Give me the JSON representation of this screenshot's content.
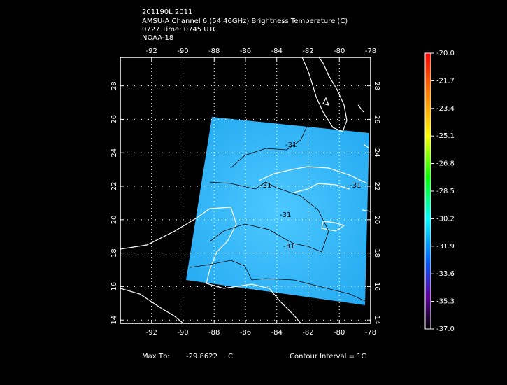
{
  "header": {
    "lines": [
      "201190L 2011",
      "AMSU-A Channel 6 (54.46GHz) Brightness Temperature (C)",
      "0727 Time: 0745 UTC",
      "NOAA-18"
    ]
  },
  "map": {
    "xlim": [
      -94,
      -78
    ],
    "ylim": [
      13.8,
      29.7
    ],
    "lon_ticks": [
      -92,
      -90,
      -88,
      -86,
      -84,
      -82,
      -80,
      -78
    ],
    "lat_ticks": [
      28,
      26,
      24,
      22,
      20,
      18,
      16,
      14
    ],
    "contour_labels": [
      "-31",
      "-31",
      "-31",
      "-31",
      "-31"
    ]
  },
  "colorbar": {
    "labels": [
      "-20.0",
      "-21.7",
      "-23.4",
      "-25.1",
      "-26.8",
      "-28.5",
      "-30.2",
      "-31.9",
      "-33.6",
      "-35.3",
      "-37.0"
    ]
  },
  "footer": {
    "max_label": "Max Tb:",
    "max_value": "-29.8622",
    "max_unit": "C",
    "contour_interval": "Contour Interval = 1C"
  }
}
